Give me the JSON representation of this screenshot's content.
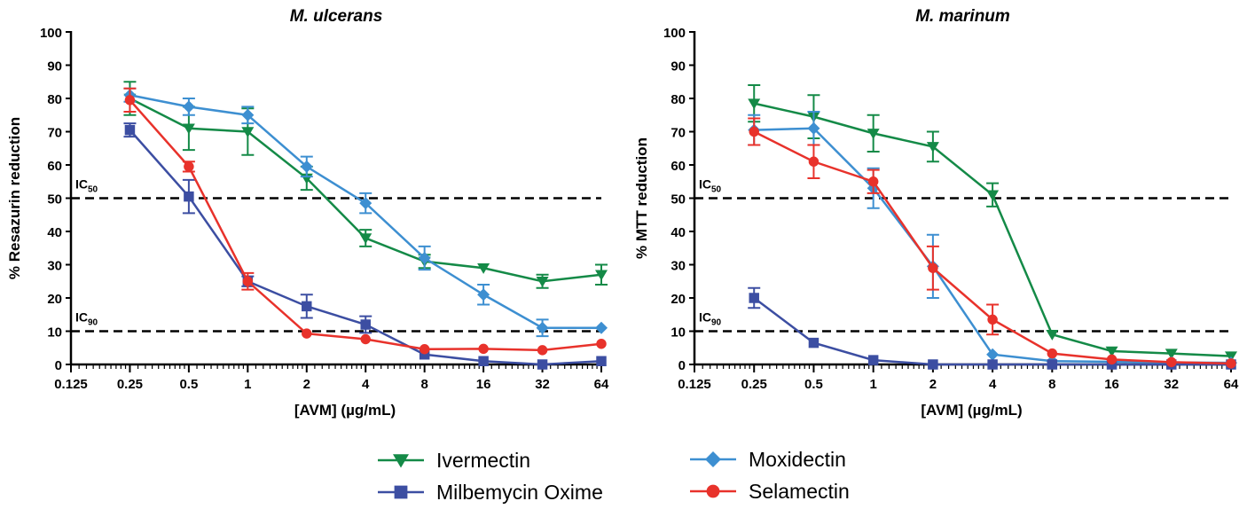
{
  "colors": {
    "ivermectin": "#148a47",
    "milbemycin": "#3c4ea2",
    "moxidectin": "#3d8fd1",
    "selamectin": "#e8322b"
  },
  "thresholds": {
    "ic50_label": "IC",
    "ic50_sub": "50",
    "ic90_label": "IC",
    "ic90_sub": "90"
  },
  "legend": [
    {
      "name": "Ivermectin",
      "marker": "triangle-down",
      "color": "#148a47"
    },
    {
      "name": "Moxidectin",
      "marker": "diamond",
      "color": "#3d8fd1"
    },
    {
      "name": "Milbemycin Oxime",
      "marker": "square",
      "color": "#3c4ea2"
    },
    {
      "name": "Selamectin",
      "marker": "circle",
      "color": "#e8322b"
    }
  ],
  "chart_data": [
    {
      "type": "line",
      "title": "M. ulcerans",
      "xlabel": "[AVM] (µg/mL)",
      "ylabel": "% Resazurin reduction",
      "x_scale": "log2",
      "xlim": [
        0.125,
        64
      ],
      "x_ticks": [
        "0.125",
        "0.25",
        "0.5",
        "1",
        "2",
        "4",
        "8",
        "16",
        "32",
        "64"
      ],
      "ylim": [
        0,
        100
      ],
      "y_ticks": [
        "0",
        "10",
        "20",
        "30",
        "40",
        "50",
        "60",
        "70",
        "80",
        "90",
        "100"
      ],
      "reference_lines": [
        {
          "y": 50,
          "label": "IC50"
        },
        {
          "y": 10,
          "label": "IC90"
        }
      ],
      "series": [
        {
          "name": "Ivermectin",
          "x": [
            0.25,
            0.5,
            1,
            2,
            4,
            8,
            16,
            32,
            64
          ],
          "y": [
            80,
            71,
            70,
            56,
            38,
            31,
            29,
            25,
            27
          ],
          "err": [
            5,
            6.5,
            7,
            3.5,
            2.5,
            2,
            0,
            2,
            3
          ]
        },
        {
          "name": "Moxidectin",
          "x": [
            0.25,
            0.5,
            1,
            2,
            4,
            8,
            16,
            32,
            64
          ],
          "y": [
            81,
            77.5,
            75,
            59.5,
            48.5,
            32,
            21,
            11,
            11
          ],
          "err": [
            2,
            2.5,
            2.5,
            3,
            3,
            3.5,
            3,
            2.5,
            0
          ]
        },
        {
          "name": "Milbemycin Oxime",
          "x": [
            0.25,
            0.5,
            1,
            2,
            4,
            8,
            16,
            32,
            64
          ],
          "y": [
            70.5,
            50.5,
            25,
            17.5,
            12,
            3,
            1,
            0,
            1
          ],
          "err": [
            2,
            5,
            1.5,
            3.5,
            2.5,
            0,
            0,
            0,
            0
          ]
        },
        {
          "name": "Selamectin",
          "x": [
            0.25,
            0.5,
            1,
            2,
            4,
            8,
            16,
            32,
            64
          ],
          "y": [
            79.5,
            59.5,
            25,
            9.3,
            7.6,
            4.6,
            4.7,
            4.3,
            6.2
          ],
          "err": [
            3.5,
            1.5,
            2.5,
            0,
            0,
            0,
            0,
            0,
            0
          ]
        }
      ]
    },
    {
      "type": "line",
      "title": "M. marinum",
      "xlabel": "[AVM] (µg/mL)",
      "ylabel": "% MTT reduction",
      "x_scale": "log2",
      "xlim": [
        0.125,
        64
      ],
      "x_ticks": [
        "0.125",
        "0.25",
        "0.5",
        "1",
        "2",
        "4",
        "8",
        "16",
        "32",
        "64"
      ],
      "ylim": [
        0,
        100
      ],
      "y_ticks": [
        "0",
        "10",
        "20",
        "30",
        "40",
        "50",
        "60",
        "70",
        "80",
        "90",
        "100"
      ],
      "reference_lines": [
        {
          "y": 50,
          "label": "IC50"
        },
        {
          "y": 10,
          "label": "IC90"
        }
      ],
      "series": [
        {
          "name": "Ivermectin",
          "x": [
            0.25,
            0.5,
            1,
            2,
            4,
            8,
            16,
            32,
            64
          ],
          "y": [
            78.5,
            74.5,
            69.5,
            65.5,
            51,
            9,
            4,
            3.3,
            2.5
          ],
          "err": [
            5.5,
            6.5,
            5.5,
            4.5,
            3.5,
            0,
            0,
            0,
            0
          ]
        },
        {
          "name": "Moxidectin",
          "x": [
            0.25,
            0.5,
            1,
            2,
            4,
            8,
            16,
            32,
            64
          ],
          "y": [
            70.5,
            71,
            53,
            29.5,
            3,
            1,
            0.8,
            0.6,
            0.5
          ],
          "err": [
            4.5,
            5,
            6,
            9.5,
            0,
            0,
            0,
            0,
            0
          ]
        },
        {
          "name": "Milbemycin Oxime",
          "x": [
            0.25,
            0.5,
            1,
            2,
            4,
            8,
            16,
            32,
            64
          ],
          "y": [
            20,
            6.5,
            1.3,
            0,
            0,
            0,
            0,
            0,
            0
          ],
          "err": [
            3,
            0,
            0,
            0,
            0,
            0,
            0,
            0,
            0
          ]
        },
        {
          "name": "Selamectin",
          "x": [
            0.25,
            0.5,
            1,
            2,
            4,
            8,
            16,
            32,
            64
          ],
          "y": [
            70,
            61,
            55,
            29,
            13.5,
            3.3,
            1.5,
            0.7,
            0.3
          ],
          "err": [
            4,
            5,
            3.5,
            6.5,
            4.5,
            0,
            0,
            0,
            0
          ]
        }
      ]
    }
  ]
}
